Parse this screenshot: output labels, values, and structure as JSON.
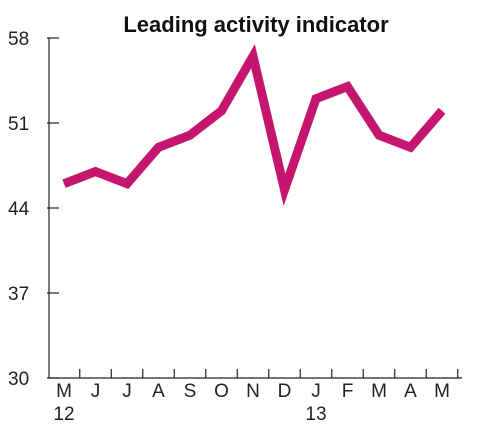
{
  "chart_data": {
    "type": "line",
    "title": "Leading activity indicator",
    "categories": [
      "M",
      "J",
      "J",
      "A",
      "S",
      "O",
      "N",
      "D",
      "J",
      "F",
      "M",
      "A",
      "M"
    ],
    "year_labels": [
      {
        "index": 0,
        "label": "12"
      },
      {
        "index": 8,
        "label": "13"
      }
    ],
    "series": [
      {
        "values": [
          46,
          47,
          46,
          49,
          50,
          52,
          56.5,
          45.5,
          53,
          54,
          50,
          49,
          52
        ],
        "color": "#c4166e"
      }
    ],
    "ylim": [
      30,
      58
    ],
    "yticks": [
      30,
      37,
      44,
      51,
      58
    ],
    "xlabel": "",
    "ylabel": "",
    "grid": false,
    "legend": "none"
  }
}
